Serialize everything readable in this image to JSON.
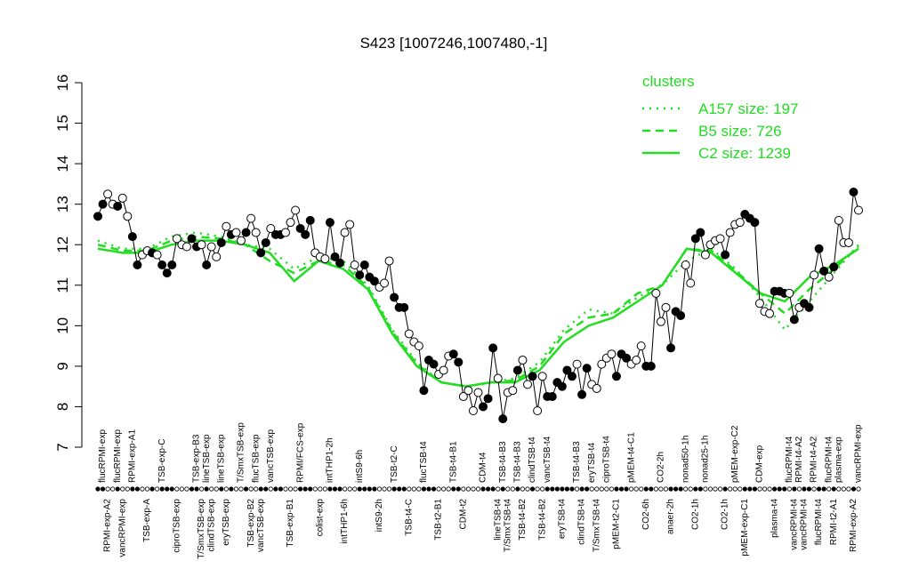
{
  "chart_data": {
    "type": "line",
    "title": "S423 [1007246,1007480,-1]",
    "ylim": [
      7,
      16
    ],
    "yticks": [
      7,
      8,
      9,
      10,
      11,
      12,
      13,
      14,
      15,
      16
    ],
    "color": "#000000",
    "values": [
      12.7,
      13.0,
      13.25,
      13.0,
      12.95,
      13.15,
      12.7,
      12.2,
      11.5,
      11.75,
      11.85,
      11.8,
      11.75,
      11.5,
      11.3,
      11.5,
      12.15,
      12.0,
      11.95,
      12.15,
      11.95,
      12.0,
      11.5,
      11.95,
      11.7,
      12.05,
      12.45,
      12.25,
      12.3,
      12.1,
      12.3,
      12.65,
      12.3,
      11.8,
      12.05,
      12.4,
      12.25,
      12.25,
      12.3,
      12.55,
      12.85,
      12.4,
      12.25,
      12.6,
      11.8,
      11.7,
      11.65,
      12.55,
      11.7,
      11.55,
      12.3,
      12.5,
      11.5,
      11.25,
      11.5,
      11.2,
      11.1,
      10.95,
      11.05,
      11.6,
      10.7,
      10.45,
      10.45,
      9.8,
      9.6,
      9.5,
      8.4,
      9.15,
      9.05,
      8.8,
      8.9,
      9.25,
      9.3,
      9.1,
      8.25,
      8.4,
      7.9,
      8.35,
      8.0,
      8.2,
      9.45,
      8.7,
      7.7,
      8.35,
      8.4,
      8.9,
      9.15,
      8.55,
      8.75,
      7.9,
      8.75,
      8.25,
      8.25,
      8.6,
      8.5,
      8.9,
      8.75,
      9.05,
      8.3,
      8.95,
      8.55,
      8.45,
      9.05,
      9.2,
      9.3,
      8.75,
      9.3,
      9.2,
      9.05,
      9.15,
      9.5,
      9.0,
      9.0,
      10.8,
      10.1,
      10.45,
      9.45,
      10.35,
      10.25,
      11.5,
      11.05,
      12.15,
      12.3,
      11.75,
      12.0,
      12.1,
      12.15,
      11.75,
      12.3,
      12.5,
      12.55,
      12.75,
      12.65,
      12.55,
      10.55,
      10.35,
      10.3,
      10.85,
      10.85,
      10.8,
      10.8,
      10.15,
      10.45,
      10.55,
      10.45,
      11.25,
      11.9,
      11.35,
      11.2,
      11.45,
      12.6,
      12.05,
      12.05,
      13.3,
      12.85
    ],
    "marker_filled": [
      true,
      true,
      false,
      false,
      true,
      false,
      false,
      true,
      true,
      false,
      false,
      true,
      false,
      true,
      true,
      true,
      false,
      false,
      false,
      true,
      true,
      false,
      true,
      false,
      false,
      true,
      false,
      true,
      false,
      false,
      true,
      false,
      false,
      true,
      true,
      false,
      true,
      true,
      false,
      false,
      false,
      true,
      true,
      true,
      false,
      false,
      false,
      true,
      true,
      true,
      false,
      false,
      false,
      true,
      true,
      true,
      true,
      false,
      false,
      false,
      true,
      true,
      true,
      false,
      false,
      false,
      true,
      true,
      true,
      false,
      false,
      false,
      true,
      true,
      false,
      false,
      false,
      false,
      true,
      true,
      true,
      false,
      true,
      false,
      false,
      true,
      false,
      false,
      true,
      false,
      false,
      true,
      true,
      true,
      true,
      true,
      true,
      false,
      true,
      true,
      false,
      false,
      false,
      false,
      false,
      true,
      true,
      true,
      false,
      false,
      false,
      true,
      true,
      false,
      false,
      false,
      true,
      true,
      true,
      false,
      false,
      true,
      true,
      false,
      false,
      false,
      false,
      true,
      false,
      false,
      false,
      true,
      true,
      true,
      false,
      false,
      false,
      true,
      true,
      true,
      false,
      true,
      false,
      true,
      true,
      false,
      true,
      true,
      false,
      true,
      false,
      false,
      false,
      true,
      false
    ],
    "categories": [
      null,
      "flucRPMI-exp",
      "RPMI-exp-A2",
      null,
      "flucRPMI-exp",
      "vancRPMI-exp",
      null,
      "RPMI-exp-A1",
      null,
      null,
      "TSB-exp-A",
      null,
      null,
      "TSB-exp-C",
      null,
      null,
      "ciproTSB-exp",
      null,
      null,
      null,
      "TSB-exp-B3",
      "T/SmxTSB-exp",
      "lineTSB-exp",
      "clindTSB-exp",
      null,
      "lineTSB-exp",
      "eryTSB-exp",
      null,
      null,
      "T/SmxTSB-exp",
      null,
      "TSB-exp-B2",
      "flucTSB-exp",
      "vancTSB-exp",
      null,
      "vancTSB-exp",
      null,
      null,
      null,
      "TSB-exp-B1",
      null,
      "RPMI/FCS-exp",
      null,
      null,
      null,
      "colist-exp",
      null,
      "intTHP1-2h",
      null,
      null,
      "intTHP1-6h",
      null,
      null,
      "intS9-6h",
      null,
      null,
      null,
      "intS9-2h",
      null,
      null,
      "TSB-t2-C",
      null,
      null,
      "TSB-t4-C",
      null,
      null,
      "flucTSB-t4",
      null,
      null,
      "TSB-t2-B1",
      null,
      null,
      "TSB-t4-B1",
      null,
      "CDM-t2",
      null,
      null,
      null,
      "CDM-t4",
      null,
      null,
      "lineTSB-t4",
      "TSB-t4-B3",
      "T/SmxTSB-t4",
      null,
      "TSB-t4-B3",
      "TSB-t4-B2",
      null,
      "clindTSB-t4",
      null,
      "TSB-t4-B2",
      "vancTSB-t4",
      null,
      null,
      "eryTSB-t4",
      null,
      null,
      "TSB-t4-B3",
      "clindTSB-t4",
      null,
      "eryTSB-t4",
      "T/SmxTSB-t4",
      null,
      "ciproTSB-t4",
      null,
      "pMEM-t2-C1",
      null,
      null,
      "pMEM-t4-C1",
      null,
      null,
      "CO2-6h",
      null,
      null,
      "CO2-2h",
      null,
      "anaer-2h",
      null,
      null,
      "nonad50-1h",
      null,
      "CO2-1h",
      null,
      "nonad25-1h",
      null,
      null,
      null,
      "CO2-1h",
      null,
      "pMEM-exp-C2",
      null,
      "pMEM-exp-C1",
      null,
      null,
      "CDM-exp",
      null,
      null,
      "plasma-t4",
      null,
      null,
      "flucRPMI-t4",
      "vancRPMI-t4",
      "RPMI-t4-A2",
      "vancRPMI-t4",
      null,
      "RPMI-t4-A2",
      "flucRPMI-t4",
      null,
      "flucRPMI-t4",
      "RPMI-t2-A1",
      "plasma-exp",
      null,
      null,
      "RPMI-exp-A2",
      "vancRPMI-exp"
    ],
    "legend_title": "clusters",
    "legend": "topright",
    "clusters": [
      {
        "name": "A157 size: 197",
        "color": "#22dd22",
        "style": "dotted",
        "values": [
          12.1,
          11.9,
          11.9,
          12.2,
          12.3,
          12.2,
          12.0,
          11.9,
          11.4,
          11.7,
          11.6,
          11.0,
          9.9,
          9.1,
          8.6,
          8.5,
          8.6,
          8.7,
          9.1,
          9.9,
          10.4,
          10.3,
          10.7,
          11.0,
          11.6,
          11.9,
          11.4,
          10.7,
          9.9,
          10.6,
          11.3,
          12.0
        ]
      },
      {
        "name": "B5 size: 726",
        "color": "#22dd22",
        "style": "dashed",
        "values": [
          12.0,
          11.85,
          11.85,
          12.1,
          12.2,
          12.15,
          12.0,
          11.6,
          11.3,
          11.6,
          11.5,
          10.95,
          9.85,
          9.05,
          8.6,
          8.5,
          8.6,
          8.65,
          9.0,
          9.8,
          10.2,
          10.3,
          10.8,
          11.0,
          11.9,
          11.85,
          11.35,
          10.8,
          10.3,
          10.9,
          11.4,
          11.95
        ]
      },
      {
        "name": "C2 size: 1239",
        "color": "#22dd22",
        "style": "solid",
        "values": [
          11.9,
          11.8,
          11.8,
          12.0,
          12.1,
          12.1,
          12.0,
          11.8,
          11.1,
          11.6,
          11.4,
          10.9,
          9.8,
          9.0,
          8.6,
          8.5,
          8.6,
          8.6,
          8.9,
          9.6,
          10.0,
          10.2,
          10.6,
          11.0,
          11.9,
          11.8,
          11.3,
          10.8,
          10.6,
          11.2,
          11.5,
          11.9
        ]
      }
    ]
  }
}
